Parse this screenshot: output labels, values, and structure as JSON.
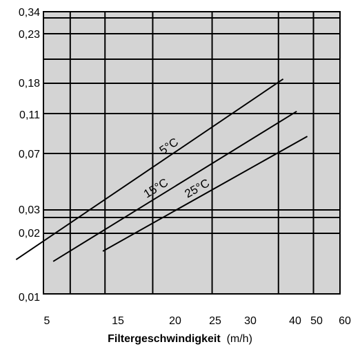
{
  "chart_data": {
    "type": "line",
    "title": "",
    "xlabel_bold": "Filtergeschwindigkeit",
    "xlabel_unit": "(m/h)",
    "ylabel": "",
    "x_tick_labels": [
      "5",
      "15",
      "20",
      "25",
      "30",
      "40",
      "50",
      "60"
    ],
    "x_grid_values": [
      15,
      17,
      20,
      25,
      33,
      45,
      53
    ],
    "y_tick_labels": [
      "0,34",
      "0,23",
      "0,18",
      "0,11",
      "0,07",
      "0,03",
      "0,02",
      "0,01"
    ],
    "y_grid_levels": [
      "0,34",
      "0,28",
      "0,23",
      "0,21",
      "0,18",
      "0,11",
      "0,07",
      "0,03",
      "0,025",
      "0,02",
      "0,01"
    ],
    "grid": true,
    "background": "#d4d4d4",
    "series": [
      {
        "name": "5°C",
        "x": [
          13.2,
          46
        ],
        "y": [
          0.0148,
          0.185
        ]
      },
      {
        "name": "15°C",
        "x": [
          15.7,
          49
        ],
        "y": [
          0.0145,
          0.114
        ]
      },
      {
        "name": "25°C",
        "x": [
          19.8,
          51.5
        ],
        "y": [
          0.0163,
          0.085
        ]
      }
    ]
  }
}
